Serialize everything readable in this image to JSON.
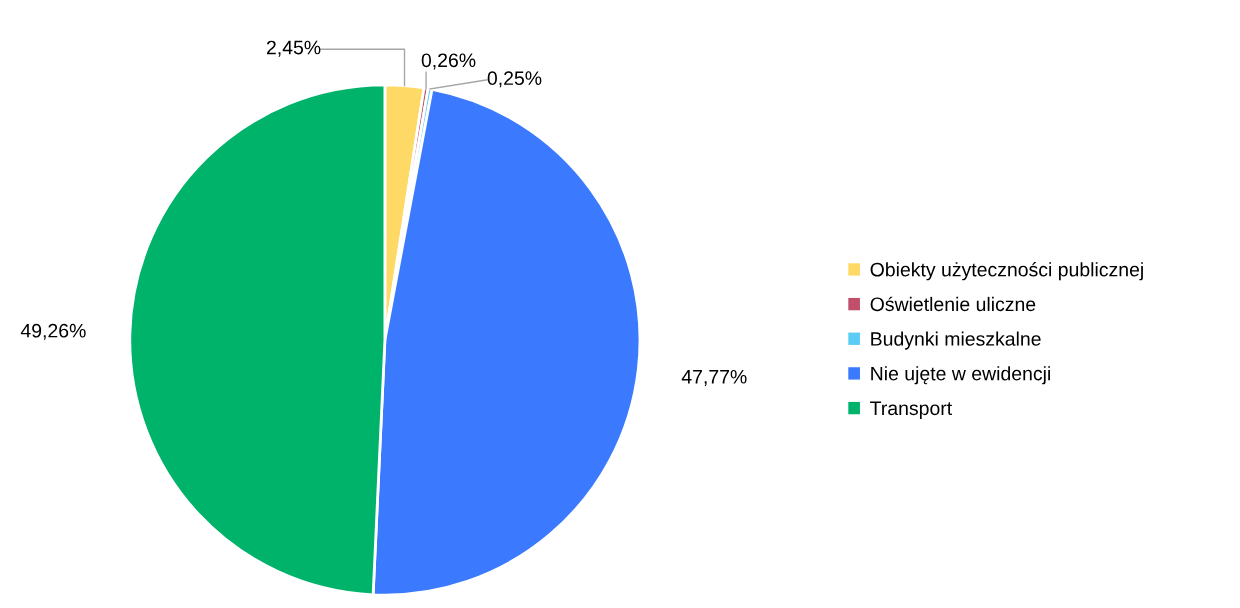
{
  "chart_data": {
    "type": "pie",
    "categories": [
      "Obiekty użyteczności publicznej",
      "Oświetlenie uliczne",
      "Budynki mieszkalne",
      "Nie ujęte w ewidencji",
      "Transport"
    ],
    "values": [
      2.45,
      0.26,
      0.25,
      47.77,
      49.26
    ],
    "colors": [
      "#ffd966",
      "#c0506a",
      "#5bcdf5",
      "#3b7aff",
      "#00b36b"
    ],
    "value_labels": [
      "2,45%",
      "0,26%",
      "0,25%",
      "47,77%",
      "49,26%"
    ],
    "legend": "right"
  }
}
